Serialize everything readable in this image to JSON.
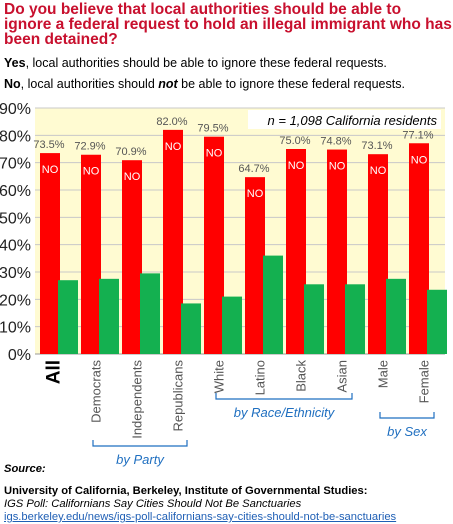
{
  "question": {
    "text": "Do you believe that local authorities should be able to ignore a federal request to hold an illegal immigrant who has been detained?"
  },
  "options": {
    "yes_word": "Yes",
    "yes_rest": ", local authorities should be able to ignore these federal requests.",
    "no_word": "No",
    "no_mid": ", local authorities should ",
    "no_not": "not",
    "no_rest": " be able to ignore these federal requests."
  },
  "colors": {
    "no": "#ff0000",
    "yes": "#14b050",
    "plot_bg": "#fffbd2",
    "group_label": "#1f6fc0",
    "grid": "#c8c8c8"
  },
  "chart_data": {
    "type": "bar",
    "categories": [
      "All",
      "Democrats",
      "Independents",
      "Republicans",
      "White",
      "Latino",
      "Black",
      "Asian",
      "Male",
      "Female"
    ],
    "series": [
      {
        "name": "NO",
        "values": [
          73.5,
          72.9,
          70.9,
          82.0,
          79.5,
          64.7,
          75.0,
          74.8,
          73.1,
          77.1
        ]
      },
      {
        "name": "Yes",
        "values": [
          27,
          27.5,
          29.5,
          18.5,
          21,
          36,
          25.5,
          25.5,
          27.5,
          23.5
        ]
      }
    ],
    "data_labels": [
      "73.5%",
      "72.9%",
      "70.9%",
      "82.0%",
      "79.5%",
      "64.7%",
      "75.0%",
      "74.8%",
      "73.1%",
      "77.1%"
    ],
    "bar_text": "NO",
    "y_ticks": [
      "0%",
      "10%",
      "20%",
      "30%",
      "40%",
      "50%",
      "60%",
      "70%",
      "80%",
      "90%"
    ],
    "ylim": [
      0,
      90
    ],
    "annotation": "n = 1,098 California residents",
    "groups": [
      {
        "label": "by Party"
      },
      {
        "label": "by Race/Ethnicity"
      },
      {
        "label": "by Sex"
      }
    ],
    "grid": true
  },
  "source": {
    "label": "Source:",
    "org": "University of California, Berkeley, Institute of Governmental Studies:",
    "title": "IGS Poll: Californians Say Cities Should Not Be Sanctuaries",
    "url": "igs.berkeley.edu/news/igs-poll-californians-say-cities-should-not-be-sanctuaries"
  }
}
